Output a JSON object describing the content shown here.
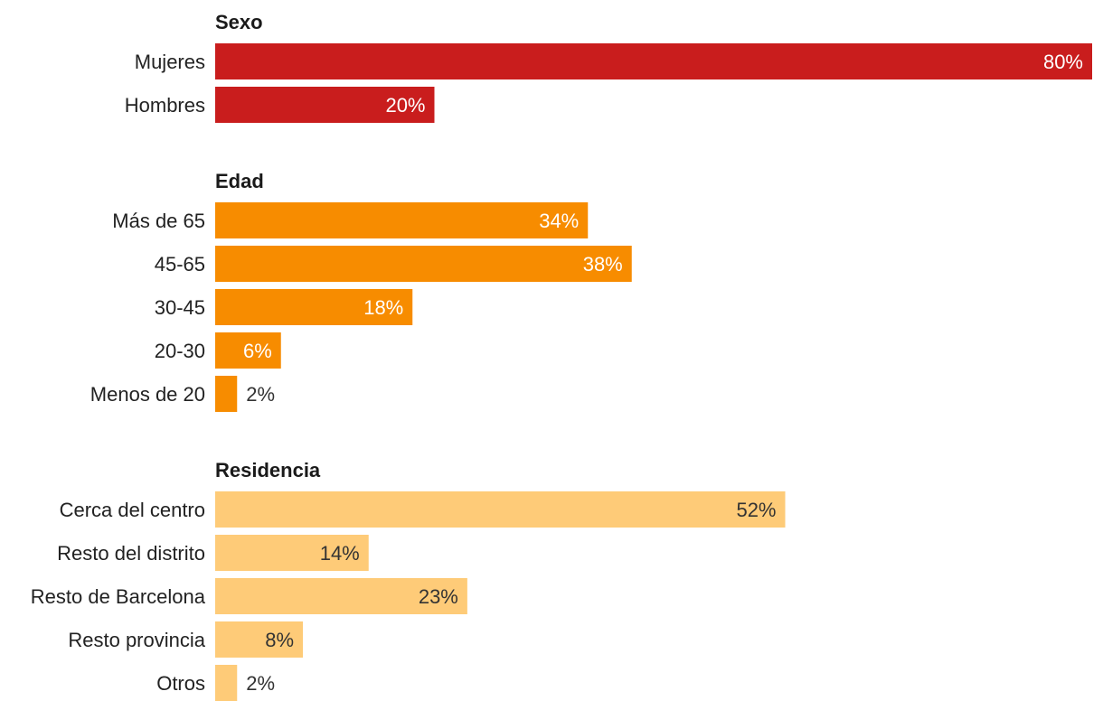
{
  "chart_data": [
    {
      "type": "bar",
      "orientation": "horizontal",
      "title": "Sexo",
      "categories": [
        "Mujeres",
        "Hombres"
      ],
      "values": [
        80,
        20
      ],
      "value_labels": [
        "80%",
        "20%"
      ],
      "color": "#c91d1d",
      "label_color_inside": "#ffffff",
      "xlim": [
        0,
        80
      ]
    },
    {
      "type": "bar",
      "orientation": "horizontal",
      "title": "Edad",
      "categories": [
        "Más de 65",
        "45-65",
        "30-45",
        "20-30",
        "Menos de 20"
      ],
      "values": [
        34,
        38,
        18,
        6,
        2
      ],
      "value_labels": [
        "34%",
        "38%",
        "18%",
        "6%",
        "2%"
      ],
      "color": "#f78c00",
      "label_color_inside": "#ffffff",
      "xlim": [
        0,
        80
      ]
    },
    {
      "type": "bar",
      "orientation": "horizontal",
      "title": "Residencia",
      "categories": [
        "Cerca del centro",
        "Resto del distrito",
        "Resto de Barcelona",
        "Resto provincia",
        "Otros"
      ],
      "values": [
        52,
        14,
        23,
        8,
        2
      ],
      "value_labels": [
        "52%",
        "14%",
        "23%",
        "8%",
        "2%"
      ],
      "color": "#fecb78",
      "label_color_inside": "#333333",
      "xlim": [
        0,
        80
      ]
    }
  ]
}
